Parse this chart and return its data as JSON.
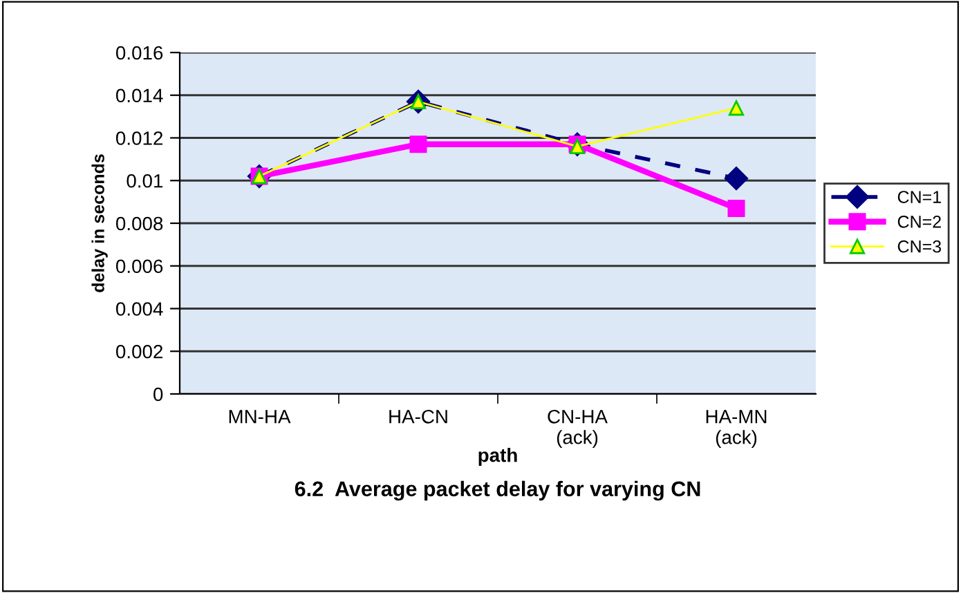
{
  "chart_data": {
    "type": "line",
    "title": "6.2  Average packet delay for varying CN",
    "xlabel": "path",
    "ylabel": "delay in seconds",
    "categories": [
      "MN-HA",
      "HA-CN",
      "CN-HA\n(ack)",
      "HA-MN\n(ack)"
    ],
    "series": [
      {
        "name": "CN=1",
        "color": "#000080",
        "values": [
          0.0102,
          0.0137,
          0.0117,
          0.0101
        ],
        "marker": "diamond",
        "line_style": "dashed"
      },
      {
        "name": "CN=2",
        "color": "#ff00ff",
        "values": [
          0.0102,
          0.0117,
          0.0117,
          0.0087
        ],
        "marker": "square",
        "line_style": "solid"
      },
      {
        "name": "CN=3",
        "color": "#ffff00",
        "values": [
          0.0102,
          0.0137,
          0.0116,
          0.0134
        ],
        "marker": "triangle",
        "line_style": "solid"
      }
    ],
    "ylim": [
      0,
      0.016
    ],
    "yticks": [
      0,
      0.002,
      0.004,
      0.006,
      0.008,
      0.01,
      0.012,
      0.014,
      0.016
    ],
    "grid": "y",
    "legend": "right"
  }
}
